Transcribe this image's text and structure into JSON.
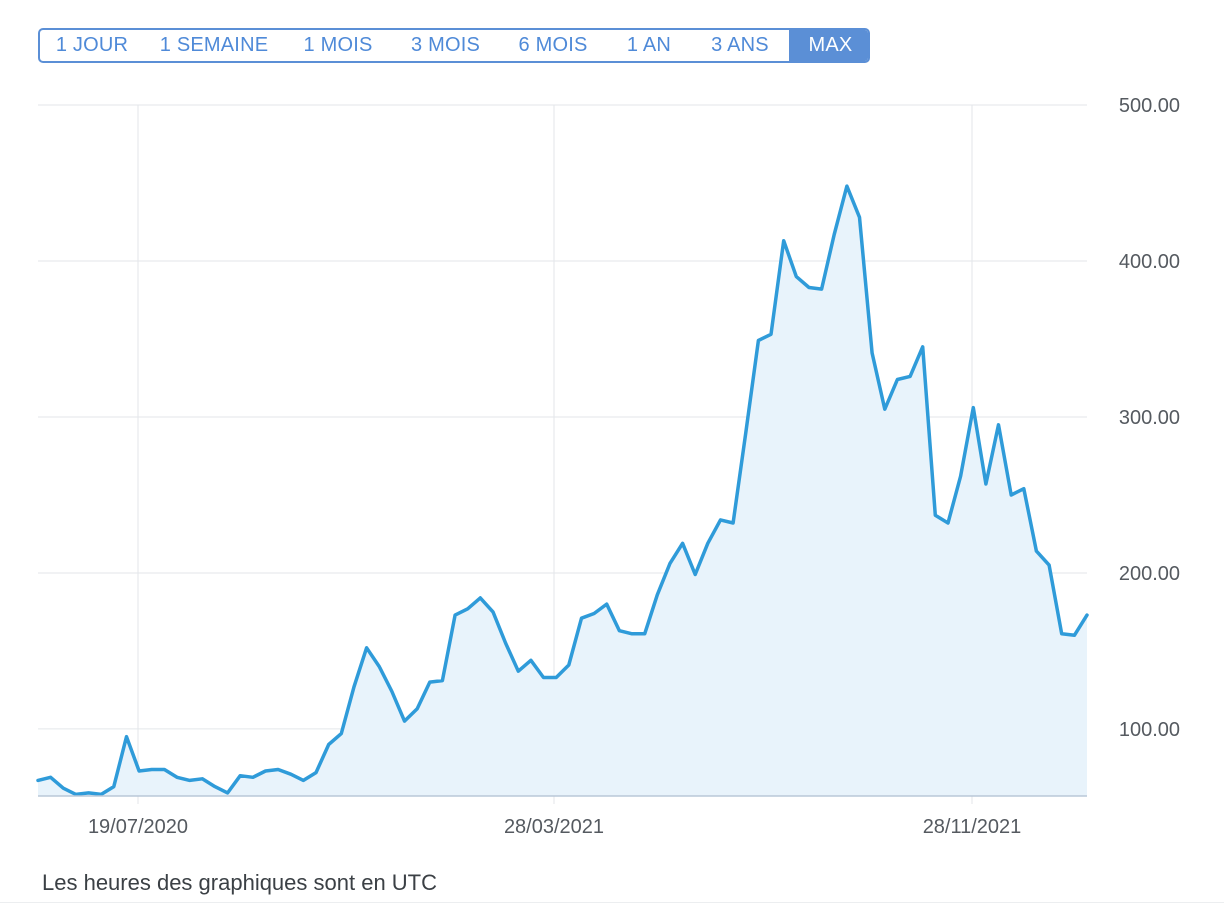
{
  "range_selector": {
    "buttons": [
      "1 JOUR",
      "1 SEMAINE",
      "1 MOIS",
      "3 MOIS",
      "6 MOIS",
      "1 AN",
      "3 ANS",
      "MAX"
    ],
    "active": "MAX"
  },
  "colors": {
    "accent": "#5b8fd6",
    "line": "#2f9bd9",
    "area": "#e8f3fb",
    "grid": "#e3e6ea"
  },
  "footnote": "Les heures des graphiques sont en UTC",
  "chart_data": {
    "type": "area",
    "title": "",
    "xlabel": "",
    "ylabel": "",
    "x_tick_labels": [
      "19/07/2020",
      "28/03/2021",
      "28/11/2021"
    ],
    "y_ticks": [
      "100.00",
      "200.00",
      "300.00",
      "400.00",
      "500.00"
    ],
    "y_axis_position": "right",
    "ylim": [
      57,
      500
    ],
    "grid": true,
    "legend": "none",
    "series": [
      {
        "values": [
          67,
          69,
          62,
          58,
          59,
          58,
          63,
          95,
          73,
          74,
          74,
          69,
          67,
          68,
          63,
          59,
          70,
          69,
          73,
          74,
          71,
          67,
          72,
          90,
          97,
          127,
          152,
          140,
          124,
          105,
          113,
          130,
          131,
          173,
          177,
          184,
          175,
          155,
          137,
          144,
          133,
          133,
          141,
          171,
          174,
          180,
          163,
          161,
          161,
          186,
          206,
          219,
          199,
          219,
          234,
          232,
          290,
          349,
          353,
          413,
          390,
          383,
          382,
          417,
          448,
          428,
          341,
          305,
          324,
          326,
          345,
          237,
          232,
          262,
          306,
          257,
          295,
          250,
          254,
          214,
          205,
          161,
          160,
          173
        ]
      }
    ]
  }
}
